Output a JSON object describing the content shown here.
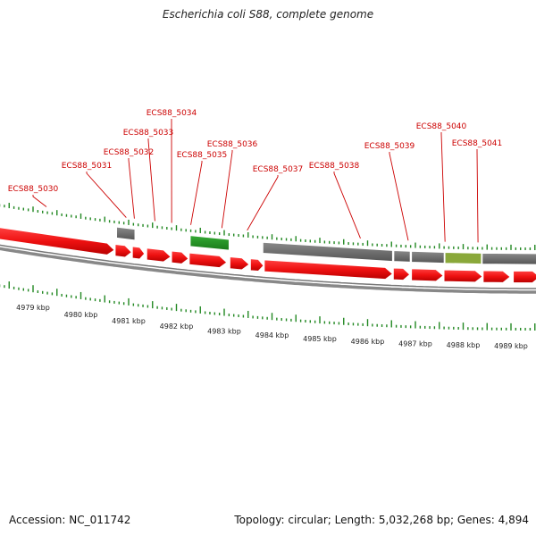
{
  "title": "Escherichia coli S88, complete genome",
  "footer": {
    "accession": "Accession: NC_011742",
    "stats": "Topology: circular; Length: 5,032,268 bp; Genes: 4,894"
  },
  "colors": {
    "forward_gene": "#ee1111",
    "other_feature": "#666666",
    "highlight_feature": "#229922",
    "tick": "#228822",
    "label": "#cc0000",
    "backbone": "#888888"
  },
  "gene_labels": [
    {
      "text": "ECS88_5030",
      "kbp": 4979.28
    },
    {
      "text": "ECS88_5031",
      "kbp": 4980.95
    },
    {
      "text": "ECS88_5032",
      "kbp": 4981.12
    },
    {
      "text": "ECS88_5033",
      "kbp": 4981.55
    },
    {
      "text": "ECS88_5034",
      "kbp": 4981.9
    },
    {
      "text": "ECS88_5035",
      "kbp": 4982.3
    },
    {
      "text": "ECS88_5036",
      "kbp": 4982.95
    },
    {
      "text": "ECS88_5037",
      "kbp": 4983.48
    },
    {
      "text": "ECS88_5038",
      "kbp": 4985.85
    },
    {
      "text": "ECS88_5039",
      "kbp": 4986.85
    },
    {
      "text": "ECS88_5040",
      "kbp": 4987.62
    },
    {
      "text": "ECS88_5041",
      "kbp": 4988.31
    }
  ],
  "axis_ticks": [
    {
      "label": "4979 kbp",
      "kbp": 4979
    },
    {
      "label": "4980 kbp",
      "kbp": 4980
    },
    {
      "label": "4981 kbp",
      "kbp": 4981
    },
    {
      "label": "4982 kbp",
      "kbp": 4982
    },
    {
      "label": "4983 kbp",
      "kbp": 4983
    },
    {
      "label": "4984 kbp",
      "kbp": 4984
    },
    {
      "label": "4985 kbp",
      "kbp": 4985
    },
    {
      "label": "4986 kbp",
      "kbp": 4986
    },
    {
      "label": "4987 kbp",
      "kbp": 4987
    },
    {
      "label": "4988 kbp",
      "kbp": 4988
    },
    {
      "label": "4989 kbp",
      "kbp": 4989
    }
  ],
  "forward_genes": [
    {
      "start": 4978.3,
      "end": 4980.7
    },
    {
      "start": 4980.72,
      "end": 4981.06
    },
    {
      "start": 4981.08,
      "end": 4981.33
    },
    {
      "start": 4981.38,
      "end": 4981.88
    },
    {
      "start": 4981.9,
      "end": 4982.25
    },
    {
      "start": 4982.27,
      "end": 4983.05
    },
    {
      "start": 4983.12,
      "end": 4983.52
    },
    {
      "start": 4983.55,
      "end": 4983.82
    },
    {
      "start": 4983.84,
      "end": 4986.52
    },
    {
      "start": 4986.54,
      "end": 4986.88
    },
    {
      "start": 4986.92,
      "end": 4987.58
    },
    {
      "start": 4987.6,
      "end": 4988.4
    },
    {
      "start": 4988.42,
      "end": 4988.98
    },
    {
      "start": 4989.05,
      "end": 4989.6
    }
  ],
  "upper_features": [
    {
      "start": 4980.75,
      "end": 4981.13,
      "kind": "other"
    },
    {
      "start": 4982.29,
      "end": 4983.1,
      "kind": "highlight"
    },
    {
      "start": 4983.81,
      "end": 4986.52,
      "kind": "other"
    },
    {
      "start": 4986.55,
      "end": 4986.89,
      "kind": "other"
    },
    {
      "start": 4986.92,
      "end": 4987.6,
      "kind": "other"
    },
    {
      "start": 4987.62,
      "end": 4988.38,
      "kind": "highlight_faded"
    },
    {
      "start": 4988.4,
      "end": 4989.6,
      "kind": "other"
    }
  ]
}
